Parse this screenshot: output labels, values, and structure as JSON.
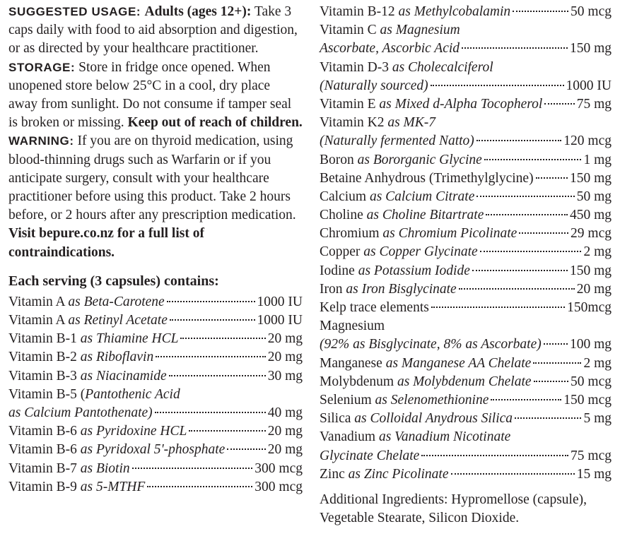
{
  "usage": [
    {
      "style": "caps",
      "text": "SUGGESTED USAGE: "
    },
    {
      "style": "b",
      "text": "Adults (ages 12+):"
    },
    {
      "style": "n",
      "text": " Take 3 caps daily with food to aid absorption and digestion, or as directed by your healthcare practitioner.  "
    },
    {
      "style": "caps",
      "text": "STORAGE:"
    },
    {
      "style": "n",
      "text": " Store in fridge once opened. When unopened store below 25°C in a cool, dry place away from sunlight. Do not consume if tamper seal is broken or missing. "
    },
    {
      "style": "b",
      "text": "Keep out of reach of children.  "
    },
    {
      "style": "caps",
      "text": "WARNING:"
    },
    {
      "style": "n",
      "text": " If you are on thyroid medication, using blood-thinning drugs such as Warfarin or if you anticipate surgery, consult with your healthcare practitioner before using this product. Take 2 hours before, or 2 hours after any prescription medication. "
    },
    {
      "style": "b",
      "text": "Visit bepure.co.nz for a full list of contraindications."
    }
  ],
  "serving_heading": "Each serving (3 capsules) contains:",
  "left_rows": [
    {
      "plain": "Vitamin A ",
      "italic": "as Beta-Carotene",
      "value": "1000 IU"
    },
    {
      "plain": "Vitamin A ",
      "italic": "as Retinyl Acetate",
      "value": "1000 IU"
    },
    {
      "plain": "Vitamin B-1 ",
      "italic": "as Thiamine HCL",
      "value": "20 mg"
    },
    {
      "plain": "Vitamin B-2 ",
      "italic": "as Riboflavin",
      "value": "20 mg"
    },
    {
      "plain": "Vitamin B-3 ",
      "italic": "as Niacinamide",
      "value": "30 mg"
    },
    {
      "plain": "Vitamin B-5 (",
      "italic": "Pantothenic Acid",
      "value": ""
    },
    {
      "plain": "",
      "italic": "as Calcium Pantothenate)",
      "value": "40 mg"
    },
    {
      "plain": "Vitamin B-6 ",
      "italic": "as Pyridoxine HCL",
      "value": "20 mg"
    },
    {
      "plain": "Vitamin B-6 ",
      "italic": "as Pyridoxal 5'-phosphate",
      "value": "20 mg"
    },
    {
      "plain": "Vitamin B-7 ",
      "italic": "as Biotin",
      "value": "300 mcg"
    },
    {
      "plain": "Vitamin B-9 ",
      "italic": "as 5-MTHF",
      "value": "300 mcg"
    }
  ],
  "right_rows": [
    {
      "plain": "Vitamin B-12 ",
      "italic": "as Methylcobalamin",
      "value": "50 mcg"
    },
    {
      "plain": "Vitamin C ",
      "italic": "as Magnesium",
      "value": ""
    },
    {
      "plain": "",
      "italic": "Ascorbate, Ascorbic Acid",
      "value": "150 mg"
    },
    {
      "plain": "Vitamin D-3 ",
      "italic": "as Cholecalciferol",
      "value": ""
    },
    {
      "plain": "",
      "italic": "(Naturally sourced)",
      "value": "1000 IU"
    },
    {
      "plain": "Vitamin E ",
      "italic": "as Mixed d-Alpha Tocopherol",
      "value": "75 mg"
    },
    {
      "plain": "Vitamin K2 ",
      "italic": "as MK-7",
      "value": ""
    },
    {
      "plain": "",
      "italic": "(Naturally fermented Natto)",
      "value": "120 mcg"
    },
    {
      "plain": "Boron ",
      "italic": "as Bororganic Glycine",
      "value": "1 mg"
    },
    {
      "plain": "Betaine Anhydrous (Trimethylglycine)",
      "italic": "",
      "value": "150 mg"
    },
    {
      "plain": "Calcium ",
      "italic": "as Calcium Citrate",
      "value": "50 mg"
    },
    {
      "plain": "Choline ",
      "italic": "as Choline Bitartrate",
      "value": "450 mg"
    },
    {
      "plain": "Chromium ",
      "italic": "as Chromium Picolinate",
      "value": "29 mcg"
    },
    {
      "plain": "Copper ",
      "italic": "as Copper Glycinate",
      "value": "2 mg"
    },
    {
      "plain": "Iodine ",
      "italic": "as Potassium Iodide",
      "value": "150 mg"
    },
    {
      "plain": "Iron ",
      "italic": "as Iron Bisglycinate",
      "value": "20 mg"
    },
    {
      "plain": "Kelp trace elements",
      "italic": "",
      "value": "150mcg"
    },
    {
      "plain": "Magnesium",
      "italic": "",
      "value": ""
    },
    {
      "plain": "",
      "italic": "(92% as Bisglycinate, 8% as Ascorbate)",
      "value": "100 mg"
    },
    {
      "plain": "Manganese ",
      "italic": "as Manganese AA Chelate",
      "value": "2 mg"
    },
    {
      "plain": "Molybdenum ",
      "italic": "as Molybdenum Chelate",
      "value": "50 mcg"
    },
    {
      "plain": "Selenium ",
      "italic": "as Selenomethionine",
      "value": "150 mcg"
    },
    {
      "plain": "Silica ",
      "italic": "as Colloidal Anydrous Silica",
      "value": "5 mg"
    },
    {
      "plain": "Vanadium ",
      "italic": "as Vanadium Nicotinate",
      "value": ""
    },
    {
      "plain": "",
      "italic": "Glycinate Chelate",
      "value": "75 mcg"
    },
    {
      "plain": "Zinc ",
      "italic": "as Zinc Picolinate",
      "value": "15 mg"
    }
  ],
  "additional": "Additional Ingredients: Hypromellose (capsule), Vegetable Stearate, Silicon Dioxide."
}
